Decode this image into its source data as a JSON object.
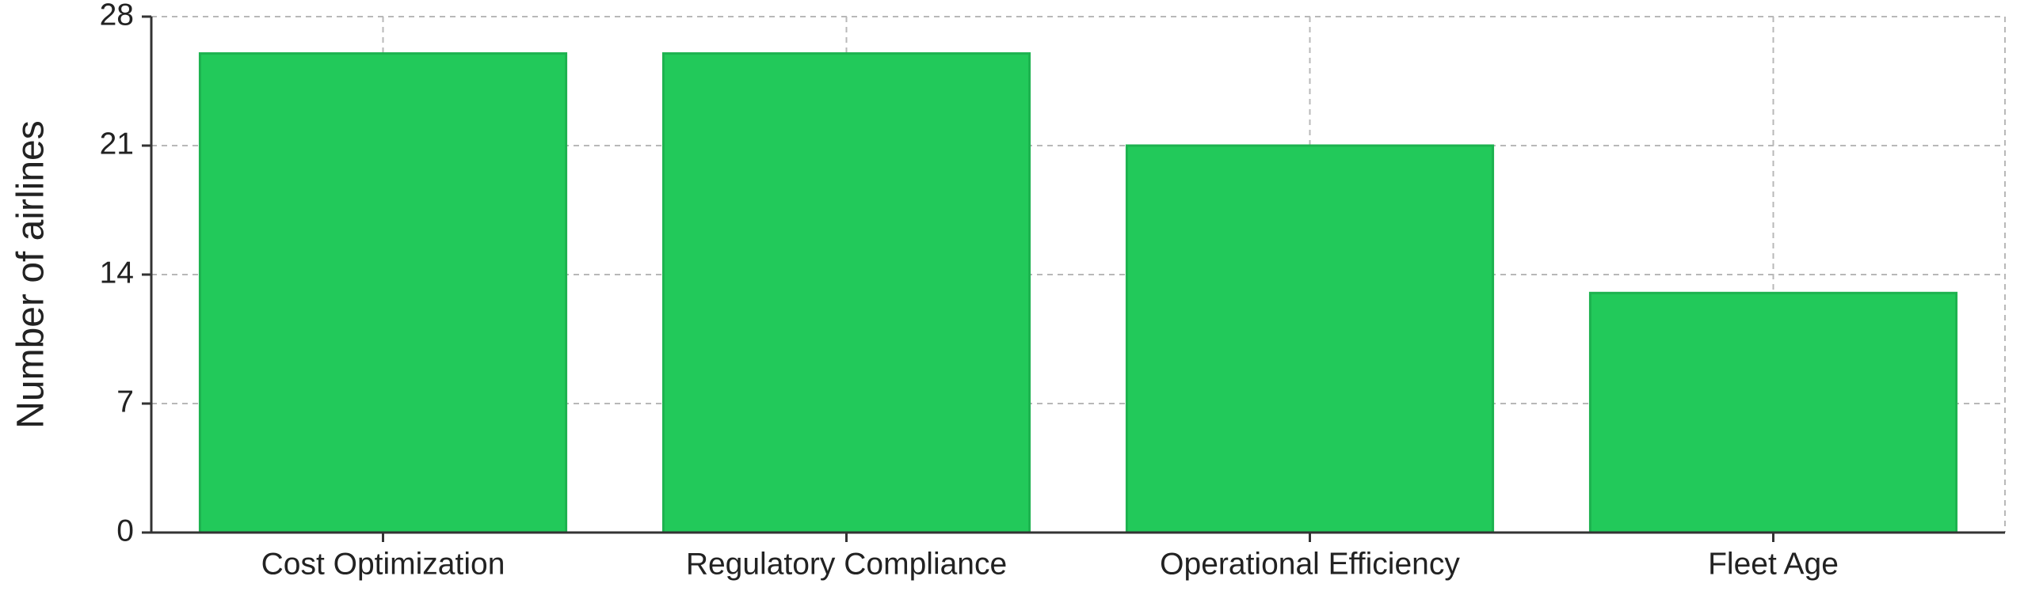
{
  "chart_data": {
    "type": "bar",
    "y_label": "Number of airlines",
    "categories": [
      "Cost Optimization",
      "Regulatory Compliance",
      "Operational Efficiency",
      "Fleet Age"
    ],
    "values": [
      26,
      26,
      21,
      13
    ],
    "color": "#22c95a",
    "ylim": [
      0,
      28
    ],
    "yticks": [
      0,
      7,
      14,
      21,
      28
    ],
    "grid": true
  }
}
